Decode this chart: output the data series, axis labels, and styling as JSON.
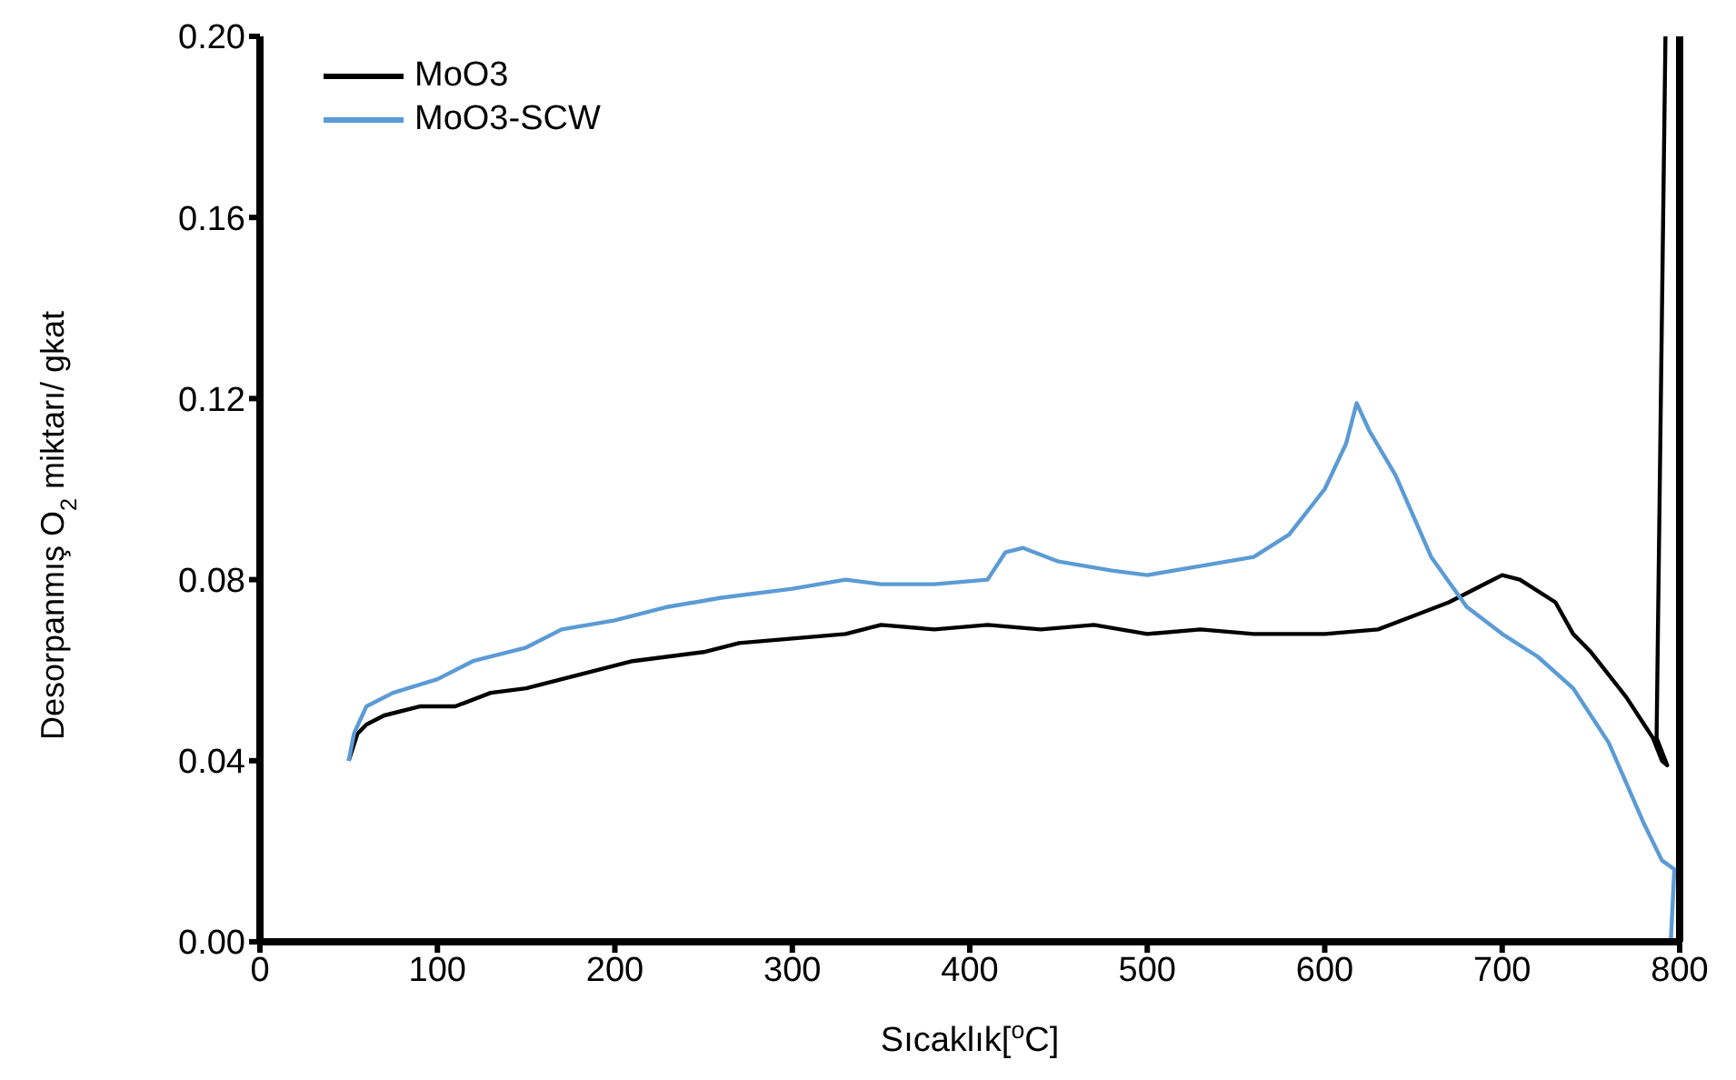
{
  "chart_data": {
    "type": "line",
    "xlabel": "Sıcaklık[$^{o}$C]",
    "ylabel": "Desorpanmış O$_{2}$ miktarı/ gkat",
    "xlim": [
      0,
      800
    ],
    "xticks": [
      0,
      100,
      200,
      300,
      400,
      500,
      600,
      700,
      800
    ],
    "ylim": [
      0,
      0.2
    ],
    "yticks": [
      {
        "value": 0,
        "label": "0.00"
      },
      {
        "value": 0.04,
        "label": "0.04"
      },
      {
        "value": 0.08,
        "label": "0.08"
      },
      {
        "value": 0.12,
        "label": "0.12"
      },
      {
        "value": 0.16,
        "label": "0.16"
      },
      {
        "value": 0.2,
        "label": "0.20"
      }
    ],
    "grid": false,
    "legend": "top left",
    "marker": "none",
    "line_style": "solid",
    "series": [
      {
        "name": "MoO3",
        "color": "#000000",
        "x": [
          50,
          55,
          60,
          70,
          90,
          110,
          130,
          150,
          170,
          190,
          210,
          230,
          250,
          270,
          300,
          330,
          350,
          380,
          410,
          440,
          470,
          500,
          530,
          560,
          600,
          630,
          650,
          670,
          690,
          700,
          710,
          730,
          740,
          750,
          770,
          780,
          785,
          790,
          793,
          787,
          792
        ],
        "values": [
          0.04,
          0.046,
          0.048,
          0.05,
          0.052,
          0.052,
          0.055,
          0.056,
          0.058,
          0.06,
          0.062,
          0.063,
          0.064,
          0.066,
          0.067,
          0.068,
          0.07,
          0.069,
          0.07,
          0.069,
          0.07,
          0.068,
          0.069,
          0.068,
          0.068,
          0.069,
          0.072,
          0.075,
          0.079,
          0.081,
          0.08,
          0.075,
          0.068,
          0.064,
          0.054,
          0.048,
          0.045,
          0.04,
          0.039,
          0.045,
          0.2
        ]
      },
      {
        "name": "MoO3-SCW",
        "color": "#5b9bd5",
        "x": [
          50,
          53,
          60,
          75,
          100,
          120,
          150,
          170,
          200,
          230,
          260,
          300,
          330,
          350,
          380,
          410,
          420,
          430,
          450,
          480,
          500,
          530,
          560,
          580,
          600,
          612,
          618,
          625,
          640,
          660,
          680,
          700,
          720,
          740,
          760,
          770,
          780,
          790,
          797,
          795
        ],
        "values": [
          0.04,
          0.046,
          0.052,
          0.055,
          0.058,
          0.062,
          0.065,
          0.069,
          0.071,
          0.074,
          0.076,
          0.078,
          0.08,
          0.079,
          0.079,
          0.08,
          0.086,
          0.087,
          0.084,
          0.082,
          0.081,
          0.083,
          0.085,
          0.09,
          0.1,
          0.11,
          0.119,
          0.113,
          0.103,
          0.085,
          0.074,
          0.068,
          0.063,
          0.056,
          0.044,
          0.035,
          0.026,
          0.018,
          0.016,
          0
        ]
      }
    ]
  }
}
